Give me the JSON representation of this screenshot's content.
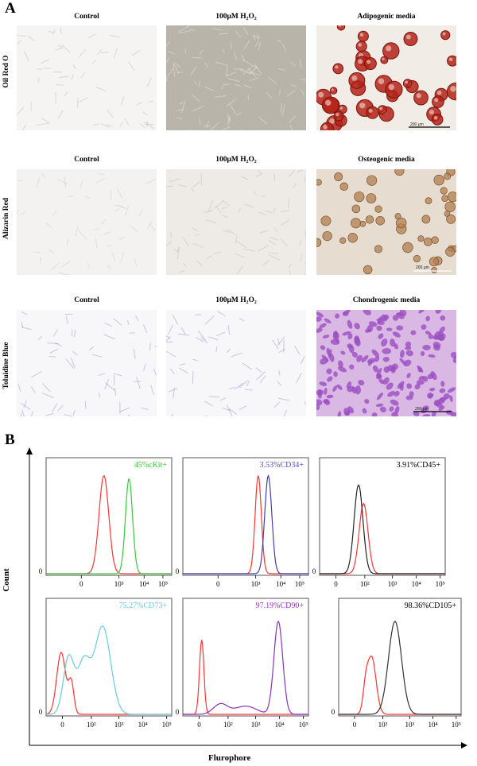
{
  "panel_a": {
    "letter": "A",
    "rows": [
      {
        "stain": "Oil Red O",
        "titles": [
          "Control",
          "100μM H₂O₂",
          "Adipogenic media"
        ],
        "scalebar": "200 μm"
      },
      {
        "stain": "Alizarin Red",
        "titles": [
          "Control",
          "100μM H₂O₂",
          "Osteogenic media"
        ],
        "scalebar": "200 μm"
      },
      {
        "stain": "Toluidine Blue",
        "titles": [
          "Control",
          "100μM H₂O₂",
          "Chondrogenic media"
        ],
        "scalebar": "200 μm"
      }
    ]
  },
  "panel_b": {
    "letter": "B",
    "y_axis_label": "Count",
    "x_axis_label": "Flurophore",
    "histograms": [
      {
        "label": "45%cKit+",
        "label_color": "#3cc83c",
        "ticks": [
          "0",
          "10³",
          "10⁴",
          "10⁵"
        ],
        "zero": "0"
      },
      {
        "label": "3.53%CD34+",
        "label_color": "#5050b4",
        "ticks": [
          "0",
          "10³",
          "10⁴",
          "10⁵"
        ],
        "zero": "0"
      },
      {
        "label": "3.91%CD45+",
        "label_color": "#000000",
        "ticks": [
          "0",
          "10²",
          "10³",
          "10⁴",
          "10⁵"
        ],
        "zero": "0"
      },
      {
        "label": "75.27%CD73+",
        "label_color": "#64c8e6",
        "ticks": [
          "0",
          "10²",
          "10³",
          "10⁴",
          "10⁵"
        ],
        "zero": "0"
      },
      {
        "label": "97.19%CD90+",
        "label_color": "#9632c8",
        "ticks": [
          "0",
          "10²",
          "10³",
          "10⁴",
          "10⁵"
        ],
        "zero": "0"
      },
      {
        "label": "98.36%CD105+",
        "label_color": "#000000",
        "ticks": [
          "0",
          "10²",
          "10³",
          "10⁴",
          "10⁵"
        ],
        "zero": "0"
      }
    ]
  },
  "colors": {
    "isotype": "#ff3333",
    "ckit": "#33cc33",
    "cd34": "#4040aa",
    "cd45": "#222222",
    "cd73": "#66ccdd",
    "cd90": "#8833bb",
    "cd105": "#333333",
    "oil_red": "#b42318",
    "alizarin": "#b08050",
    "toluidine": "#9b4fc0"
  }
}
